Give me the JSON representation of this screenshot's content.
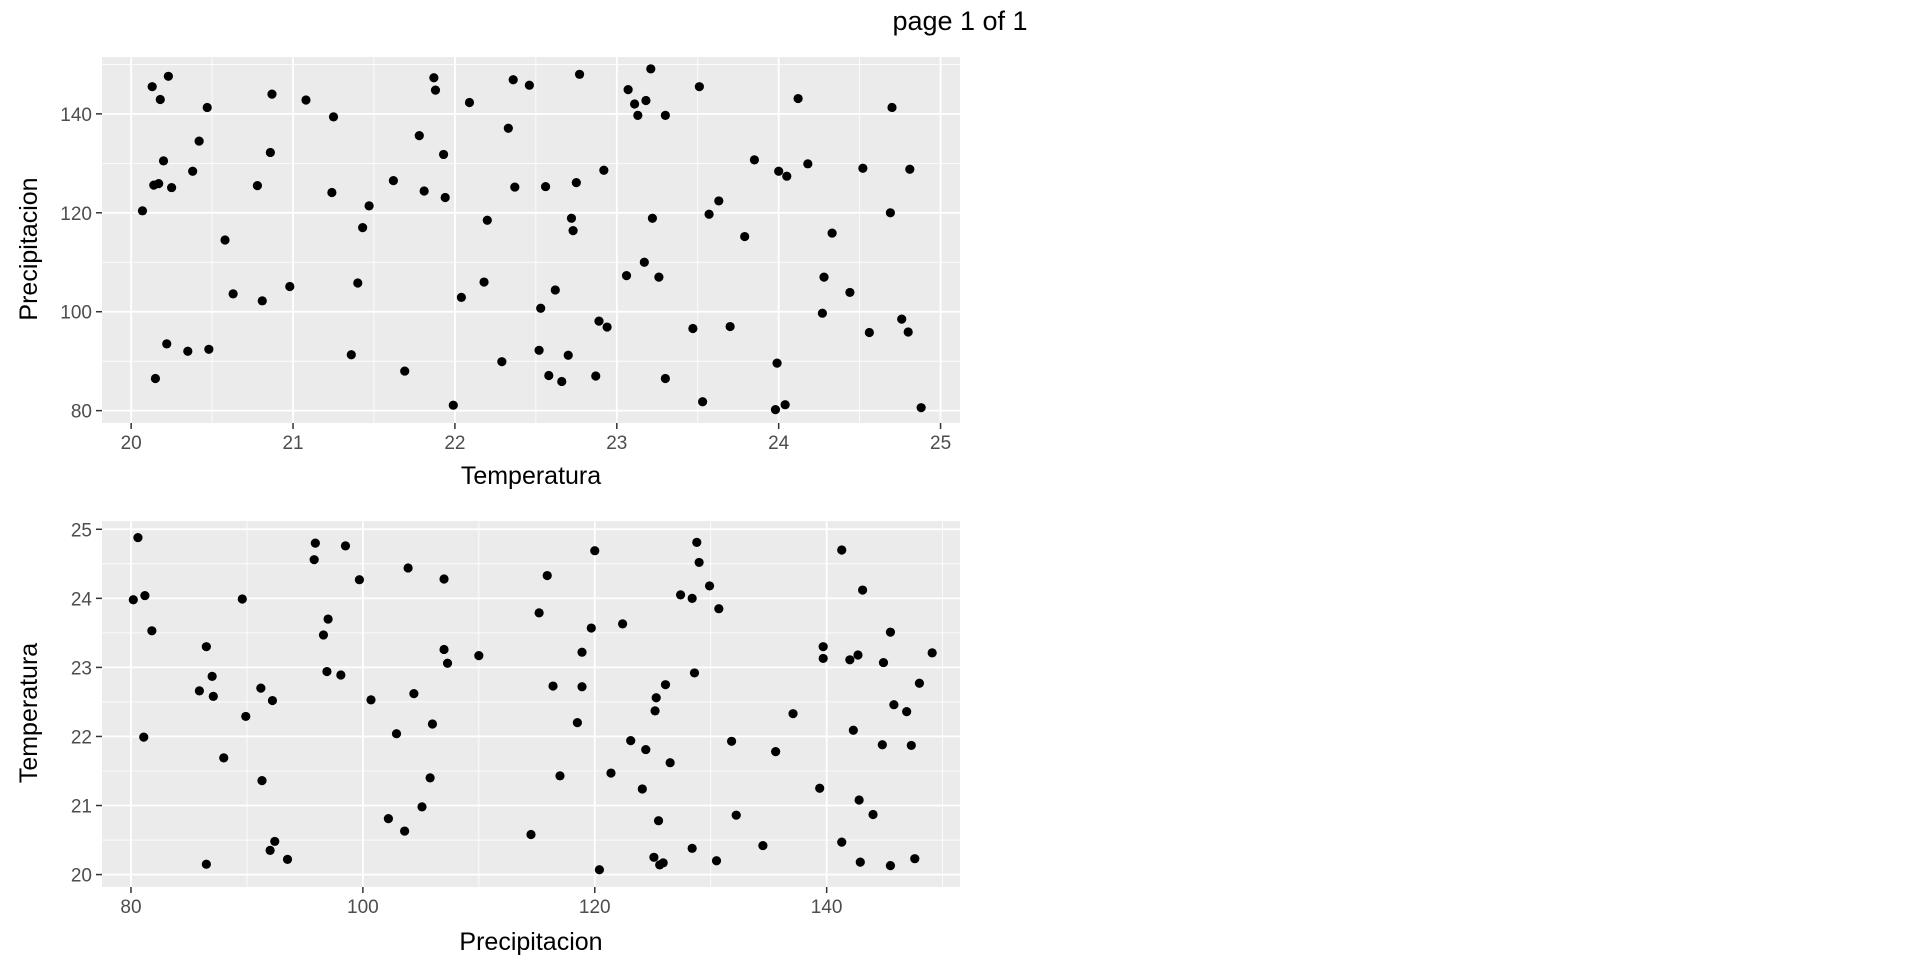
{
  "page_label": "page 1 of 1",
  "colors": {
    "panel": "#ebebeb",
    "grid_major": "#ffffff",
    "point": "#000000",
    "tick_text": "#4d4d4d"
  },
  "chart_data": [
    {
      "type": "scatter",
      "xlabel": "Temperatura",
      "ylabel": "Precipitacion",
      "xlim": [
        19.82,
        25.12
      ],
      "ylim": [
        77.5,
        151.5
      ],
      "xticks": [
        20,
        21,
        22,
        23,
        24,
        25
      ],
      "yticks": [
        80,
        100,
        120,
        140
      ],
      "grid": true,
      "points": [
        [
          20.07,
          120.4
        ],
        [
          20.13,
          145.5
        ],
        [
          20.14,
          125.6
        ],
        [
          20.15,
          86.5
        ],
        [
          20.17,
          125.9
        ],
        [
          20.18,
          142.9
        ],
        [
          20.2,
          130.5
        ],
        [
          20.22,
          93.5
        ],
        [
          20.23,
          147.6
        ],
        [
          20.25,
          125.1
        ],
        [
          20.35,
          92
        ],
        [
          20.38,
          128.4
        ],
        [
          20.42,
          134.5
        ],
        [
          20.47,
          141.3
        ],
        [
          20.48,
          92.4
        ],
        [
          20.58,
          114.5
        ],
        [
          20.63,
          103.6
        ],
        [
          20.78,
          125.5
        ],
        [
          20.81,
          102.2
        ],
        [
          20.86,
          132.2
        ],
        [
          20.87,
          144
        ],
        [
          20.98,
          105.1
        ],
        [
          21.08,
          142.8
        ],
        [
          21.24,
          124.1
        ],
        [
          21.25,
          139.4
        ],
        [
          21.36,
          91.3
        ],
        [
          21.4,
          105.8
        ],
        [
          21.43,
          117
        ],
        [
          21.47,
          121.4
        ],
        [
          21.62,
          126.5
        ],
        [
          21.69,
          88
        ],
        [
          21.78,
          135.6
        ],
        [
          21.81,
          124.4
        ],
        [
          21.87,
          147.3
        ],
        [
          21.88,
          144.8
        ],
        [
          21.93,
          131.8
        ],
        [
          21.94,
          123.1
        ],
        [
          21.99,
          81.1
        ],
        [
          22.04,
          102.9
        ],
        [
          22.09,
          142.3
        ],
        [
          22.18,
          106
        ],
        [
          22.2,
          118.5
        ],
        [
          22.29,
          89.9
        ],
        [
          22.33,
          137.1
        ],
        [
          22.36,
          146.9
        ],
        [
          22.37,
          125.2
        ],
        [
          22.46,
          145.8
        ],
        [
          22.52,
          92.2
        ],
        [
          22.53,
          100.7
        ],
        [
          22.56,
          125.3
        ],
        [
          22.58,
          87.1
        ],
        [
          22.62,
          104.4
        ],
        [
          22.66,
          85.9
        ],
        [
          22.7,
          91.2
        ],
        [
          22.72,
          118.9
        ],
        [
          22.73,
          116.4
        ],
        [
          22.75,
          126.1
        ],
        [
          22.77,
          148
        ],
        [
          22.87,
          87
        ],
        [
          22.89,
          98.1
        ],
        [
          22.92,
          128.6
        ],
        [
          22.94,
          96.9
        ],
        [
          23.06,
          107.3
        ],
        [
          23.07,
          144.9
        ],
        [
          23.11,
          142
        ],
        [
          23.13,
          139.7
        ],
        [
          23.17,
          110
        ],
        [
          23.18,
          142.7
        ],
        [
          23.21,
          149.1
        ],
        [
          23.22,
          118.9
        ],
        [
          23.26,
          107
        ],
        [
          23.3,
          86.5
        ],
        [
          23.3,
          139.7
        ],
        [
          23.47,
          96.6
        ],
        [
          23.51,
          145.5
        ],
        [
          23.53,
          81.8
        ],
        [
          23.57,
          119.7
        ],
        [
          23.63,
          122.4
        ],
        [
          23.7,
          97
        ],
        [
          23.79,
          115.2
        ],
        [
          23.85,
          130.7
        ],
        [
          23.98,
          80.2
        ],
        [
          23.99,
          89.6
        ],
        [
          24,
          128.4
        ],
        [
          24.04,
          81.2
        ],
        [
          24.05,
          127.4
        ],
        [
          24.12,
          143.1
        ],
        [
          24.18,
          129.9
        ],
        [
          24.27,
          99.7
        ],
        [
          24.28,
          107
        ],
        [
          24.33,
          115.9
        ],
        [
          24.44,
          103.9
        ],
        [
          24.52,
          129
        ],
        [
          24.56,
          95.8
        ],
        [
          24.69,
          120
        ],
        [
          24.7,
          141.3
        ],
        [
          24.76,
          98.5
        ],
        [
          24.8,
          95.9
        ],
        [
          24.81,
          128.8
        ],
        [
          24.88,
          80.6
        ]
      ]
    },
    {
      "type": "scatter",
      "xlabel": "Precipitacion",
      "ylabel": "Temperatura",
      "xlim": [
        77.5,
        151.5
      ],
      "ylim": [
        19.82,
        25.12
      ],
      "xticks": [
        80,
        100,
        120,
        140
      ],
      "yticks": [
        20,
        21,
        22,
        23,
        24,
        25
      ],
      "grid": true,
      "points": [
        [
          120.4,
          20.07
        ],
        [
          145.5,
          20.13
        ],
        [
          125.6,
          20.14
        ],
        [
          86.5,
          20.15
        ],
        [
          125.9,
          20.17
        ],
        [
          142.9,
          20.18
        ],
        [
          130.5,
          20.2
        ],
        [
          93.5,
          20.22
        ],
        [
          147.6,
          20.23
        ],
        [
          125.1,
          20.25
        ],
        [
          92,
          20.35
        ],
        [
          128.4,
          20.38
        ],
        [
          134.5,
          20.42
        ],
        [
          141.3,
          20.47
        ],
        [
          92.4,
          20.48
        ],
        [
          114.5,
          20.58
        ],
        [
          103.6,
          20.63
        ],
        [
          125.5,
          20.78
        ],
        [
          102.2,
          20.81
        ],
        [
          132.2,
          20.86
        ],
        [
          144,
          20.87
        ],
        [
          105.1,
          20.98
        ],
        [
          142.8,
          21.08
        ],
        [
          124.1,
          21.24
        ],
        [
          139.4,
          21.25
        ],
        [
          91.3,
          21.36
        ],
        [
          105.8,
          21.4
        ],
        [
          117,
          21.43
        ],
        [
          121.4,
          21.47
        ],
        [
          126.5,
          21.62
        ],
        [
          88,
          21.69
        ],
        [
          135.6,
          21.78
        ],
        [
          124.4,
          21.81
        ],
        [
          147.3,
          21.87
        ],
        [
          144.8,
          21.88
        ],
        [
          131.8,
          21.93
        ],
        [
          123.1,
          21.94
        ],
        [
          81.1,
          21.99
        ],
        [
          102.9,
          22.04
        ],
        [
          142.3,
          22.09
        ],
        [
          106,
          22.18
        ],
        [
          118.5,
          22.2
        ],
        [
          89.9,
          22.29
        ],
        [
          137.1,
          22.33
        ],
        [
          146.9,
          22.36
        ],
        [
          125.2,
          22.37
        ],
        [
          145.8,
          22.46
        ],
        [
          92.2,
          22.52
        ],
        [
          100.7,
          22.53
        ],
        [
          125.3,
          22.56
        ],
        [
          87.1,
          22.58
        ],
        [
          104.4,
          22.62
        ],
        [
          85.9,
          22.66
        ],
        [
          91.2,
          22.7
        ],
        [
          118.9,
          22.72
        ],
        [
          116.4,
          22.73
        ],
        [
          126.1,
          22.75
        ],
        [
          148,
          22.77
        ],
        [
          87,
          22.87
        ],
        [
          98.1,
          22.89
        ],
        [
          128.6,
          22.92
        ],
        [
          96.9,
          22.94
        ],
        [
          107.3,
          23.06
        ],
        [
          144.9,
          23.07
        ],
        [
          142,
          23.11
        ],
        [
          139.7,
          23.13
        ],
        [
          110,
          23.17
        ],
        [
          142.7,
          23.18
        ],
        [
          149.1,
          23.21
        ],
        [
          118.9,
          23.22
        ],
        [
          107,
          23.26
        ],
        [
          86.5,
          23.3
        ],
        [
          139.7,
          23.3
        ],
        [
          96.6,
          23.47
        ],
        [
          145.5,
          23.51
        ],
        [
          81.8,
          23.53
        ],
        [
          119.7,
          23.57
        ],
        [
          122.4,
          23.63
        ],
        [
          97,
          23.7
        ],
        [
          115.2,
          23.79
        ],
        [
          130.7,
          23.85
        ],
        [
          80.2,
          23.98
        ],
        [
          89.6,
          23.99
        ],
        [
          128.4,
          24
        ],
        [
          81.2,
          24.04
        ],
        [
          127.4,
          24.05
        ],
        [
          143.1,
          24.12
        ],
        [
          129.9,
          24.18
        ],
        [
          99.7,
          24.27
        ],
        [
          107,
          24.28
        ],
        [
          115.9,
          24.33
        ],
        [
          103.9,
          24.44
        ],
        [
          129,
          24.52
        ],
        [
          95.8,
          24.56
        ],
        [
          120,
          24.69
        ],
        [
          141.3,
          24.7
        ],
        [
          98.5,
          24.76
        ],
        [
          95.9,
          24.8
        ],
        [
          128.8,
          24.81
        ],
        [
          80.6,
          24.88
        ]
      ]
    }
  ]
}
